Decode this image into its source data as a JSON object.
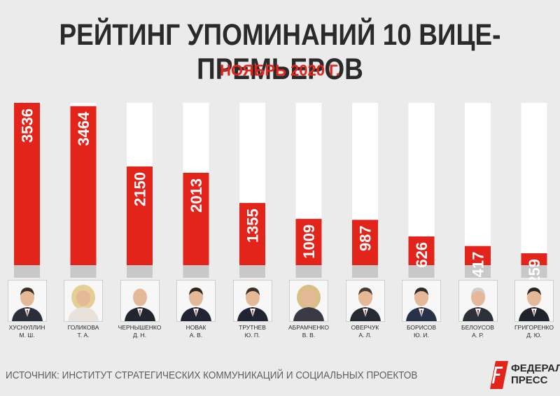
{
  "header": {
    "title": "РЕЙТИНГ УПОМИНАНИЙ 10 ВИЦЕ-ПРЕМЬЕРОВ",
    "subtitle": "НОЯБРЬ 2020 Г."
  },
  "chart_data": {
    "type": "bar",
    "title": "РЕЙТИНГ УПОМИНАНИЙ 10 ВИЦЕ-ПРЕМЬЕРОВ",
    "subtitle": "НОЯБРЬ 2020 Г.",
    "categories": [
      [
        "ХУСНУЛЛИН",
        "М. Ш."
      ],
      [
        "ГОЛИКОВА",
        "Т. А."
      ],
      [
        "ЧЕРНЫШЕНКО",
        "Д. Н."
      ],
      [
        "НОВАК",
        "А. В."
      ],
      [
        "ТРУТНЕВ",
        "Ю. П."
      ],
      [
        "АБРАМЧЕНКО",
        "В. В."
      ],
      [
        "ОВЕРЧУК",
        "А. Л."
      ],
      [
        "БОРИСОВ",
        "Ю. И."
      ],
      [
        "БЕЛОУСОВ",
        "А. Р."
      ],
      [
        "ГРИГОРЕНКО",
        "Д. Ю."
      ]
    ],
    "values": [
      3536,
      3464,
      2150,
      2013,
      1355,
      1009,
      987,
      626,
      417,
      259
    ],
    "ylim": [
      0,
      3536
    ],
    "grid": false,
    "legend": "none",
    "colors": {
      "bar": "#e3241b",
      "track": "#ffffff",
      "base": "#c8c8c8",
      "label": "#ffffff"
    }
  },
  "people": [
    {
      "surname": "ХУСНУЛЛИН",
      "initials": "М. Ш.",
      "photo": "portrait-man-suit",
      "suit": "#2b2f3a",
      "hair": "#3a2e28"
    },
    {
      "surname": "ГОЛИКОВА",
      "initials": "Т. А.",
      "photo": "portrait-woman-blonde",
      "suit": "#e9e2dc",
      "hair": "#e6cf96"
    },
    {
      "surname": "ЧЕРНЫШЕНКО",
      "initials": "Д. Н.",
      "photo": "portrait-man-bald",
      "suit": "#22252d",
      "hair": "#9a8f88"
    },
    {
      "surname": "НОВАК",
      "initials": "А. В.",
      "photo": "portrait-man-suit",
      "suit": "#1f2533",
      "hair": "#2e2620"
    },
    {
      "surname": "ТРУТНЕВ",
      "initials": "Ю. П.",
      "photo": "portrait-man-suit",
      "suit": "#1e2431",
      "hair": "#3b3029"
    },
    {
      "surname": "АБРАМЧЕНКО",
      "initials": "В. В.",
      "photo": "portrait-woman-blonde",
      "suit": "#3a3a44",
      "hair": "#d9bf86"
    },
    {
      "surname": "ОВЕРЧУК",
      "initials": "А. Л.",
      "photo": "portrait-man-suit",
      "suit": "#262a33",
      "hair": "#4a3a30"
    },
    {
      "surname": "БОРИСОВ",
      "initials": "Ю. И.",
      "photo": "portrait-man-suit",
      "suit": "#27324a",
      "hair": "#2f2a26"
    },
    {
      "surname": "БЕЛОУСОВ",
      "initials": "А. Р.",
      "photo": "portrait-man-gray",
      "suit": "#2c3038",
      "hair": "#cfcfcf"
    },
    {
      "surname": "ГРИГОРЕНКО",
      "initials": "Д. Ю.",
      "photo": "portrait-man-suit",
      "suit": "#20232b",
      "hair": "#2a2420"
    }
  ],
  "footer": {
    "source": "ИСТОЧНИК: ИНСТИТУТ СТРАТЕГИЧЕСКИХ КОММУНИКАЦИЙ И СОЦИАЛЬНЫХ ПРОЕКТОВ",
    "logo": {
      "line1": "ФЕДЕРАЛ",
      "line2": "ПРЕСС",
      "mark_color": "#e3241b",
      "icon": "fp-logo-icon"
    }
  }
}
